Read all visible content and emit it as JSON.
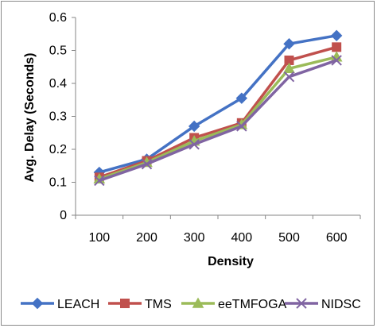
{
  "chart_data": {
    "type": "line",
    "title": "",
    "xlabel": "Density",
    "ylabel": "Avg. Delay (Seconds)",
    "categories": [
      "100",
      "200",
      "300",
      "400",
      "500",
      "600"
    ],
    "ylim": [
      0,
      0.6
    ],
    "yticks": [
      "0",
      "0.1",
      "0.2",
      "0.3",
      "0.4",
      "0.5",
      "0.6"
    ],
    "grid": false,
    "legend_position": "bottom",
    "series": [
      {
        "name": "LEACH",
        "color": "#4472C4",
        "marker": "diamond",
        "values": [
          0.13,
          0.17,
          0.27,
          0.355,
          0.52,
          0.545
        ]
      },
      {
        "name": "TMS",
        "color": "#C0504D",
        "marker": "square",
        "values": [
          0.115,
          0.165,
          0.235,
          0.28,
          0.47,
          0.51
        ]
      },
      {
        "name": "eeTMFOGA",
        "color": "#9BBB59",
        "marker": "triangle",
        "values": [
          0.11,
          0.16,
          0.225,
          0.275,
          0.445,
          0.48
        ]
      },
      {
        "name": "NIDSC",
        "color": "#8064A2",
        "marker": "x",
        "values": [
          0.105,
          0.155,
          0.215,
          0.27,
          0.42,
          0.47
        ]
      }
    ]
  }
}
